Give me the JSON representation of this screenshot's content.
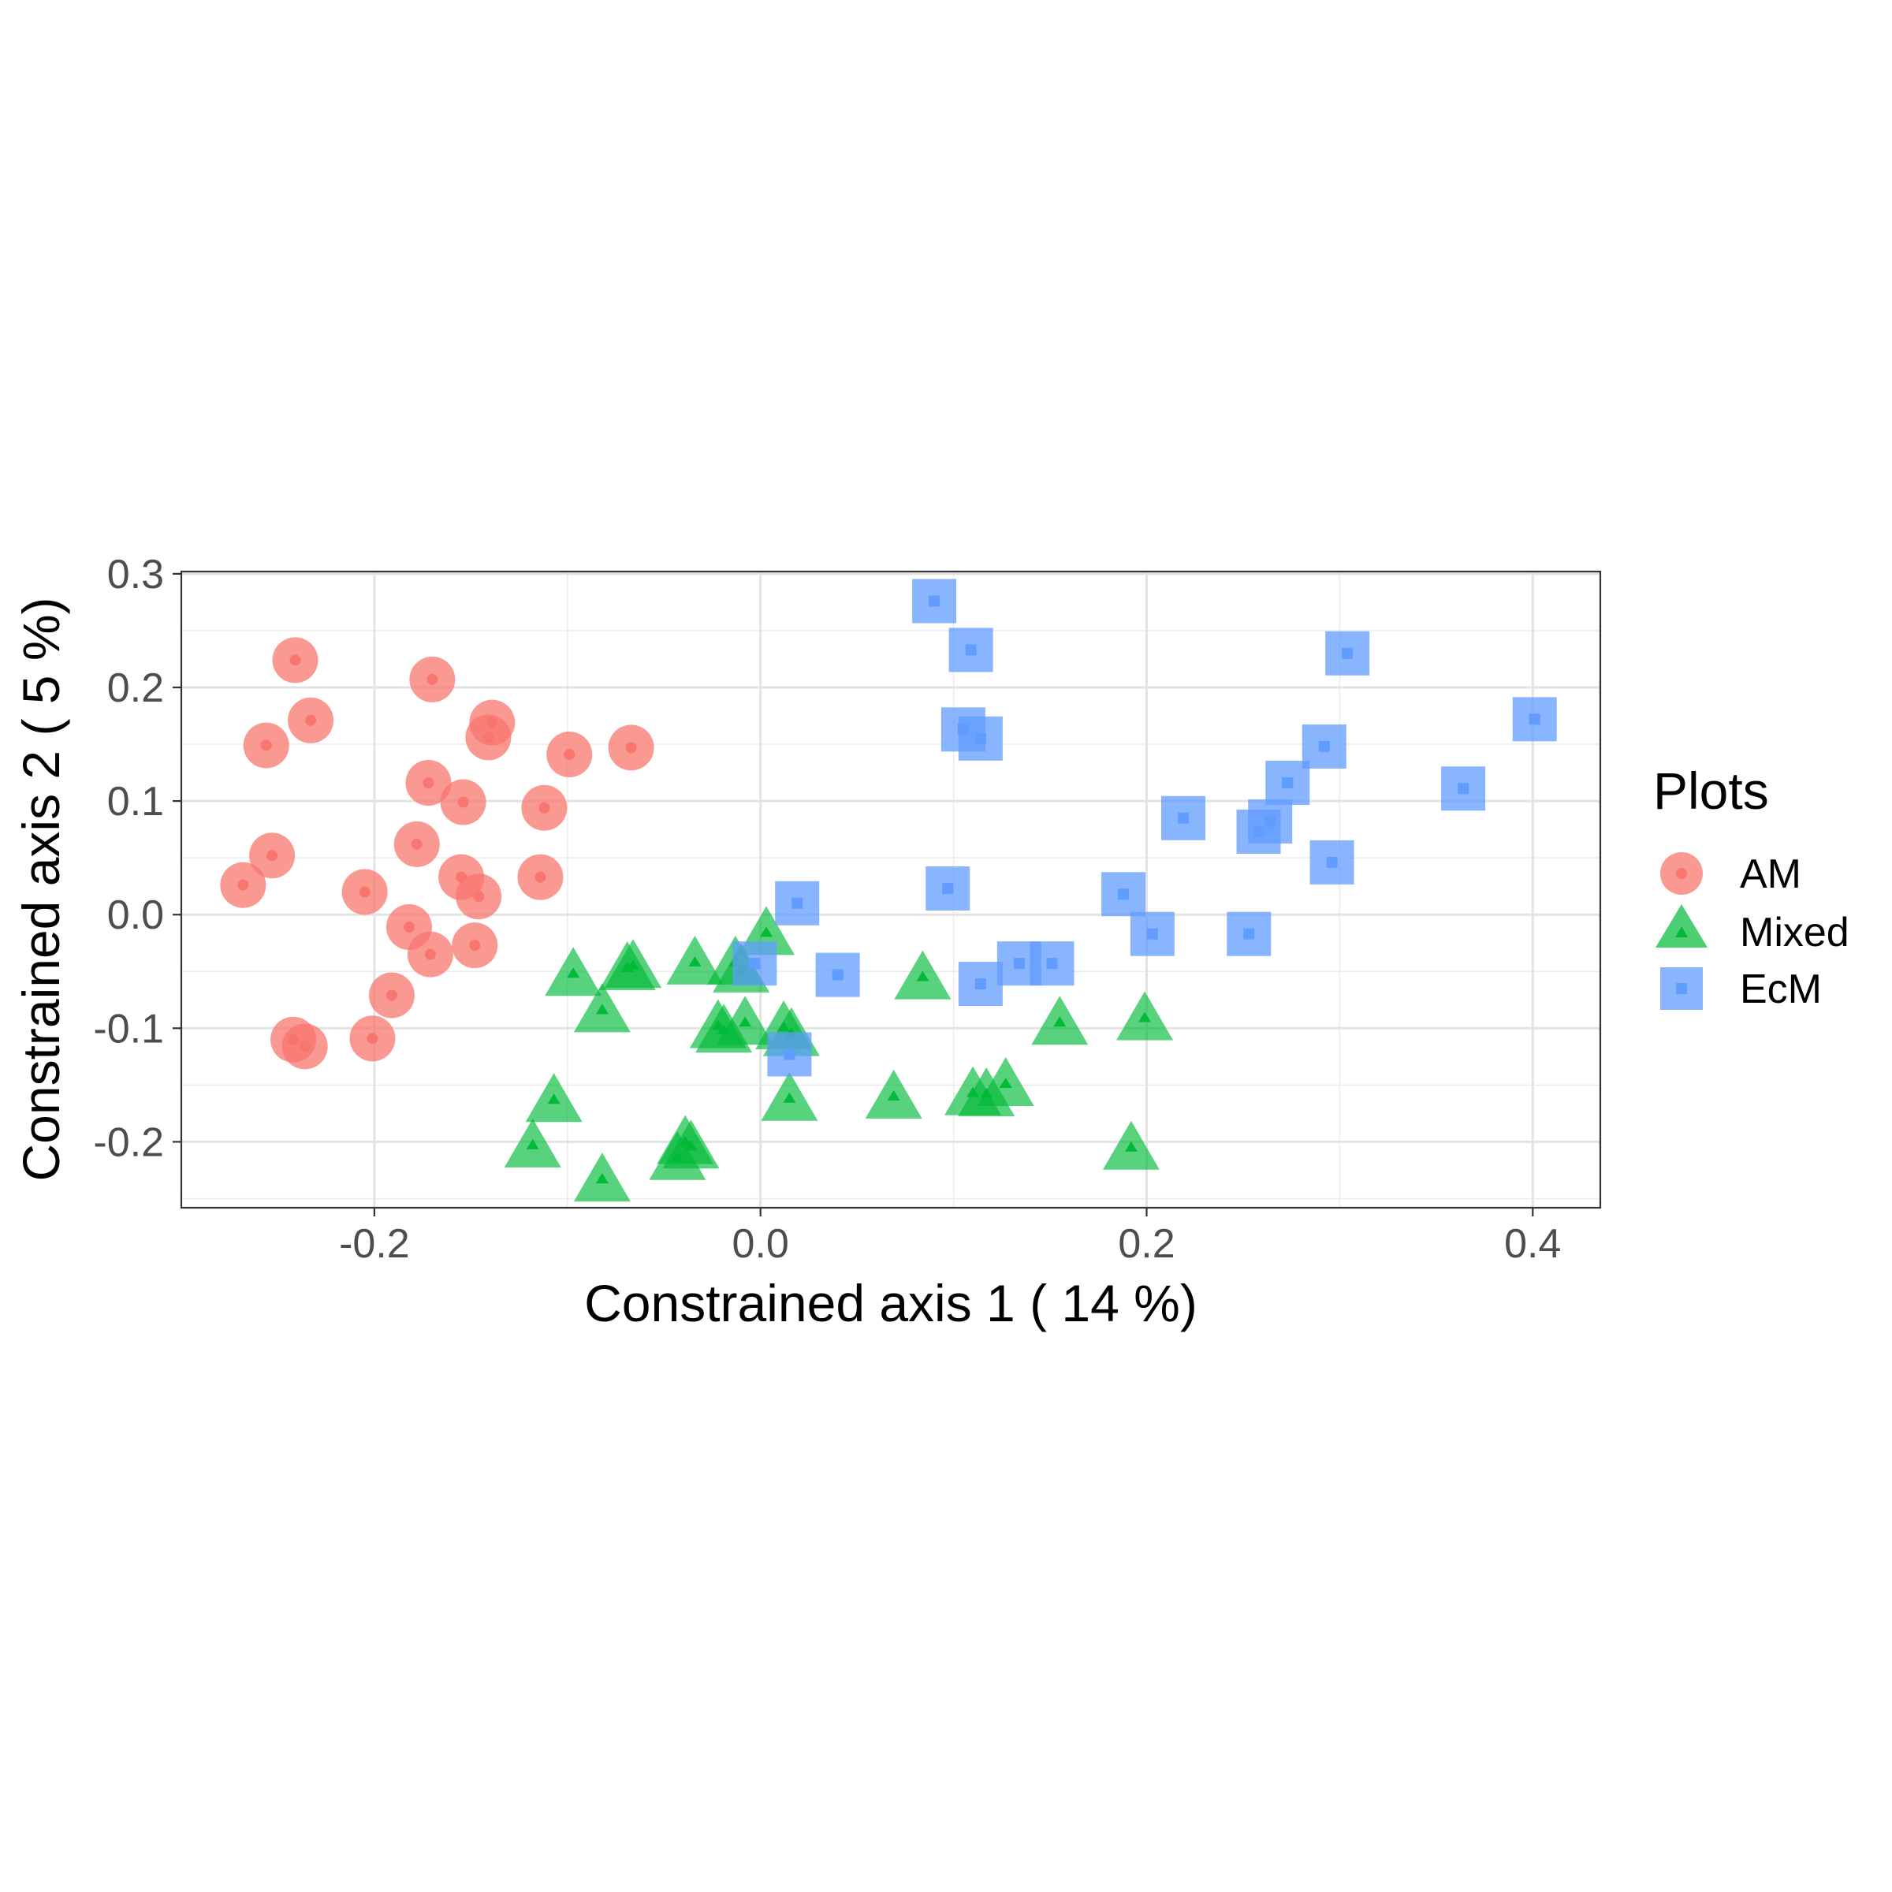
{
  "chart_data": {
    "type": "scatter",
    "title": "",
    "xlabel": "Constrained axis 1 ( 14 %)",
    "ylabel": "Constrained axis 2 ( 5 %)",
    "xlim": [
      -0.3,
      0.435
    ],
    "ylim": [
      -0.258,
      0.302
    ],
    "x_ticks": [
      -0.2,
      0.0,
      0.2,
      0.4
    ],
    "x_tick_labels": [
      "-0.2",
      "0.0",
      "0.2",
      "0.4"
    ],
    "y_ticks": [
      -0.2,
      -0.1,
      0.0,
      0.1,
      0.2,
      0.3
    ],
    "y_tick_labels": [
      "-0.2",
      "-0.1",
      "0.0",
      "0.1",
      "0.2",
      "0.3"
    ],
    "grid": true,
    "legend": {
      "title": "Plots",
      "position": "right",
      "entries": [
        "AM",
        "Mixed",
        "EcM"
      ]
    },
    "series": [
      {
        "name": "AM",
        "color": "#F8766D",
        "marker": "circle",
        "points": [
          [
            -0.241,
            0.224
          ],
          [
            -0.17,
            0.207
          ],
          [
            -0.233,
            0.171
          ],
          [
            -0.256,
            0.149
          ],
          [
            -0.139,
            0.169
          ],
          [
            -0.141,
            0.156
          ],
          [
            -0.099,
            0.141
          ],
          [
            -0.067,
            0.147
          ],
          [
            -0.172,
            0.116
          ],
          [
            -0.154,
            0.099
          ],
          [
            -0.112,
            0.094
          ],
          [
            -0.178,
            0.062
          ],
          [
            -0.253,
            0.052
          ],
          [
            -0.268,
            0.026
          ],
          [
            -0.205,
            0.02
          ],
          [
            -0.155,
            0.033
          ],
          [
            -0.146,
            0.016
          ],
          [
            -0.114,
            0.033
          ],
          [
            -0.182,
            -0.011
          ],
          [
            -0.171,
            -0.035
          ],
          [
            -0.148,
            -0.027
          ],
          [
            -0.191,
            -0.071
          ],
          [
            -0.201,
            -0.109
          ],
          [
            -0.242,
            -0.11
          ],
          [
            -0.236,
            -0.116
          ]
        ]
      },
      {
        "name": "Mixed",
        "color": "#00BA38",
        "marker": "triangle",
        "points": [
          [
            0.003,
            -0.014
          ],
          [
            -0.034,
            -0.04
          ],
          [
            -0.066,
            -0.043
          ],
          [
            -0.069,
            -0.045
          ],
          [
            -0.097,
            -0.05
          ],
          [
            -0.013,
            -0.04
          ],
          [
            -0.01,
            -0.047
          ],
          [
            -0.082,
            -0.082
          ],
          [
            0.084,
            -0.053
          ],
          [
            -0.022,
            -0.096
          ],
          [
            -0.008,
            -0.093
          ],
          [
            -0.019,
            -0.1
          ],
          [
            0.012,
            -0.097
          ],
          [
            0.016,
            -0.103
          ],
          [
            0.155,
            -0.093
          ],
          [
            0.199,
            -0.089
          ],
          [
            -0.107,
            -0.161
          ],
          [
            0.015,
            -0.16
          ],
          [
            0.069,
            -0.158
          ],
          [
            0.11,
            -0.155
          ],
          [
            0.127,
            -0.147
          ],
          [
            0.117,
            -0.156
          ],
          [
            -0.118,
            -0.201
          ],
          [
            -0.082,
            -0.231
          ],
          [
            -0.039,
            -0.198
          ],
          [
            -0.036,
            -0.202
          ],
          [
            -0.043,
            -0.212
          ],
          [
            0.192,
            -0.203
          ]
        ]
      },
      {
        "name": "EcM",
        "color": "#619CFF",
        "marker": "square",
        "points": [
          [
            0.09,
            0.276
          ],
          [
            0.109,
            0.233
          ],
          [
            0.304,
            0.23
          ],
          [
            0.401,
            0.172
          ],
          [
            0.105,
            0.163
          ],
          [
            0.114,
            0.155
          ],
          [
            0.292,
            0.148
          ],
          [
            0.273,
            0.116
          ],
          [
            0.364,
            0.111
          ],
          [
            0.219,
            0.085
          ],
          [
            0.264,
            0.082
          ],
          [
            0.258,
            0.073
          ],
          [
            0.296,
            0.046
          ],
          [
            0.097,
            0.023
          ],
          [
            0.188,
            0.018
          ],
          [
            0.019,
            0.01
          ],
          [
            0.203,
            -0.017
          ],
          [
            0.253,
            -0.017
          ],
          [
            -0.003,
            -0.043
          ],
          [
            0.04,
            -0.053
          ],
          [
            0.134,
            -0.043
          ],
          [
            0.151,
            -0.043
          ],
          [
            0.114,
            -0.061
          ],
          [
            0.015,
            -0.123
          ]
        ]
      }
    ]
  }
}
